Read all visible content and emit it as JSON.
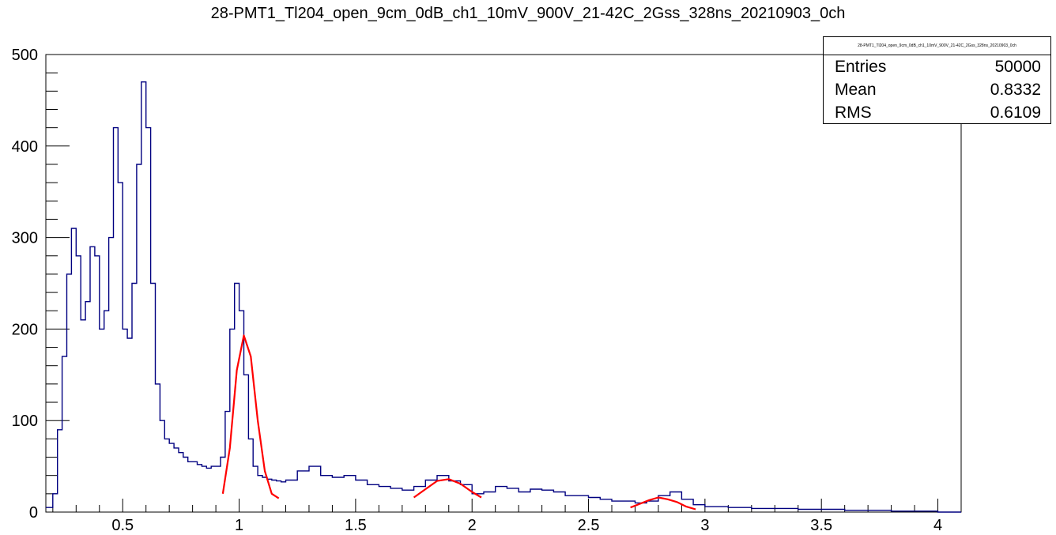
{
  "title": "28-PMT1_Tl204_open_9cm_0dB_ch1_10mV_900V_21-42C_2Gss_328ns_20210903_0ch",
  "stats": {
    "name": "28-PMT1_Tl204_open_9cm_0dB_ch1_10mV_900V_21-42C_2Gss_328ns_20210903_0ch",
    "entries_label": "Entries",
    "entries_value": "50000",
    "mean_label": "Mean",
    "mean_value": "0.8332",
    "rms_label": "RMS",
    "rms_value": "0.6109"
  },
  "colors": {
    "histogram": "#000080",
    "fit": "#ff0000",
    "axis": "#000000"
  },
  "chart_data": {
    "type": "line",
    "title": "28-PMT1_Tl204_open_9cm_0dB_ch1_10mV_900V_21-42C_2Gss_328ns_20210903_0ch",
    "xlabel": "",
    "ylabel": "",
    "xlim": [
      0.17,
      4.1
    ],
    "ylim": [
      0,
      500
    ],
    "x_ticks": [
      "0.5",
      "1",
      "1.5",
      "2",
      "2.5",
      "3",
      "3.5",
      "4"
    ],
    "y_ticks": [
      "0",
      "100",
      "200",
      "300",
      "400",
      "500"
    ],
    "grid": false,
    "series": [
      {
        "style": "histogram",
        "x": [
          0.17,
          0.2,
          0.22,
          0.24,
          0.26,
          0.28,
          0.3,
          0.32,
          0.34,
          0.36,
          0.38,
          0.4,
          0.42,
          0.44,
          0.46,
          0.48,
          0.5,
          0.52,
          0.54,
          0.56,
          0.58,
          0.6,
          0.62,
          0.64,
          0.66,
          0.68,
          0.7,
          0.72,
          0.74,
          0.76,
          0.78,
          0.8,
          0.82,
          0.84,
          0.86,
          0.88,
          0.9,
          0.92,
          0.94,
          0.96,
          0.98,
          1.0,
          1.02,
          1.04,
          1.06,
          1.08,
          1.1,
          1.12,
          1.14,
          1.16,
          1.18,
          1.2,
          1.25,
          1.3,
          1.35,
          1.4,
          1.45,
          1.5,
          1.55,
          1.6,
          1.65,
          1.7,
          1.75,
          1.8,
          1.85,
          1.9,
          1.95,
          2.0,
          2.05,
          2.1,
          2.15,
          2.2,
          2.25,
          2.3,
          2.35,
          2.4,
          2.45,
          2.5,
          2.55,
          2.6,
          2.65,
          2.7,
          2.75,
          2.8,
          2.85,
          2.9,
          2.95,
          3.0,
          3.1,
          3.2,
          3.3,
          3.4,
          3.5,
          3.6,
          3.7,
          3.8,
          3.9,
          4.0,
          4.1
        ],
        "y": [
          5,
          20,
          90,
          170,
          260,
          310,
          280,
          210,
          230,
          290,
          280,
          200,
          220,
          300,
          420,
          360,
          200,
          190,
          250,
          380,
          470,
          420,
          250,
          140,
          100,
          80,
          75,
          70,
          65,
          60,
          55,
          55,
          52,
          50,
          48,
          50,
          50,
          60,
          110,
          200,
          250,
          220,
          150,
          80,
          50,
          40,
          38,
          36,
          35,
          34,
          33,
          35,
          45,
          50,
          40,
          38,
          40,
          35,
          30,
          28,
          26,
          24,
          28,
          35,
          40,
          34,
          30,
          20,
          22,
          28,
          26,
          22,
          25,
          24,
          22,
          18,
          18,
          16,
          14,
          12,
          12,
          10,
          12,
          18,
          22,
          14,
          8,
          6,
          5,
          4,
          4,
          3,
          3,
          2,
          2,
          1,
          1,
          0,
          0
        ]
      },
      {
        "style": "fit",
        "x": [
          0.93,
          0.96,
          0.99,
          1.02,
          1.05,
          1.08,
          1.11,
          1.14,
          1.17
        ],
        "y": [
          20,
          70,
          155,
          193,
          170,
          100,
          45,
          20,
          15
        ]
      },
      {
        "style": "fit",
        "x": [
          1.75,
          1.8,
          1.85,
          1.9,
          1.95,
          2.0,
          2.04
        ],
        "y": [
          16,
          25,
          34,
          36,
          31,
          22,
          16
        ]
      },
      {
        "style": "fit",
        "x": [
          2.68,
          2.72,
          2.76,
          2.8,
          2.84,
          2.88,
          2.92,
          2.96
        ],
        "y": [
          5,
          9,
          13,
          16,
          14,
          11,
          6,
          3
        ]
      }
    ]
  }
}
